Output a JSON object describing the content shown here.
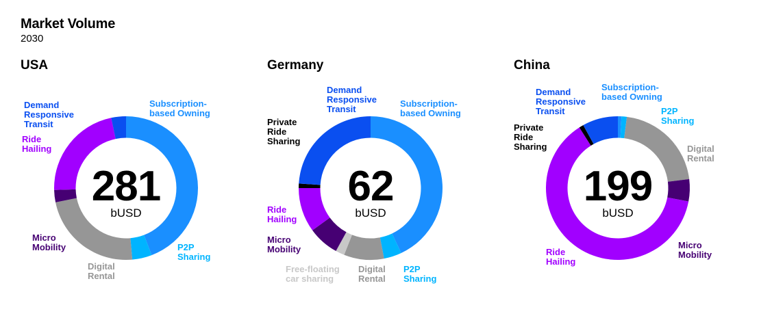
{
  "header": {
    "title": "Market Volume",
    "subtitle": "2030"
  },
  "colors": {
    "demand_responsive_transit": "#0a4ff0",
    "subscription_based_owning": "#1a8fff",
    "p2p_sharing": "#00b4ff",
    "digital_rental": "#969696",
    "micro_mobility": "#460073",
    "ride_hailing": "#a100ff",
    "private_ride_sharing": "#000000",
    "free_floating_car_sharing": "#c8c8c8"
  },
  "chart_data": [
    {
      "type": "pie",
      "variant": "donut",
      "title": "USA",
      "total": "281",
      "unit": "bUSD",
      "segments": [
        {
          "label": "Subscription-based Owning",
          "key": "subscription_based_owning",
          "value": 40
        },
        {
          "label": "P2P Sharing",
          "key": "p2p_sharing",
          "value": 4
        },
        {
          "label": "Digital Rental",
          "key": "digital_rental",
          "value": 21
        },
        {
          "label": "Micro Mobility",
          "key": "micro_mobility",
          "value": 2.5
        },
        {
          "label": "Ride Hailing",
          "key": "ride_hailing",
          "value": 20
        },
        {
          "label": "Demand Responsive Transit",
          "key": "demand_responsive_transit",
          "value": 3
        }
      ],
      "labels": {
        "demand_responsive_transit": "Demand\nResponsive\nTransit",
        "subscription_based_owning": "Subscription-\nbased Owning",
        "ride_hailing": "Ride\nHailing",
        "micro_mobility": "Micro\nMobility",
        "digital_rental": "Digital\nRental",
        "p2p_sharing": "P2P\nSharing"
      }
    },
    {
      "type": "pie",
      "variant": "donut",
      "title": "Germany",
      "total": "62",
      "unit": "bUSD",
      "segments": [
        {
          "label": "Subscription-based Owning",
          "key": "subscription_based_owning",
          "value": 43
        },
        {
          "label": "P2P Sharing",
          "key": "p2p_sharing",
          "value": 4
        },
        {
          "label": "Digital Rental",
          "key": "digital_rental",
          "value": 9
        },
        {
          "label": "Free-floating car sharing",
          "key": "free_floating_car_sharing",
          "value": 2
        },
        {
          "label": "Micro Mobility",
          "key": "micro_mobility",
          "value": 7
        },
        {
          "label": "Ride Hailing",
          "key": "ride_hailing",
          "value": 10
        },
        {
          "label": "Private Ride Sharing",
          "key": "private_ride_sharing",
          "value": 1
        },
        {
          "label": "Demand Responsive Transit",
          "key": "demand_responsive_transit",
          "value": 24
        }
      ],
      "labels": {
        "private_ride_sharing": "Private\nRide\nSharing",
        "demand_responsive_transit": "Demand\nResponsive\nTransit",
        "subscription_based_owning": "Subscription-\nbased Owning",
        "ride_hailing": "Ride\nHailing",
        "micro_mobility": "Micro\nMobility",
        "free_floating_car_sharing": "Free-floating\ncar sharing",
        "digital_rental": "Digital\nRental",
        "p2p_sharing": "P2P\nSharing"
      }
    },
    {
      "type": "pie",
      "variant": "donut",
      "title": "China",
      "total": "199",
      "unit": "bUSD",
      "segments": [
        {
          "label": "Subscription-based Owning",
          "key": "subscription_based_owning",
          "value": 0.8
        },
        {
          "label": "P2P Sharing",
          "key": "p2p_sharing",
          "value": 1.2
        },
        {
          "label": "Digital Rental",
          "key": "digital_rental",
          "value": 21
        },
        {
          "label": "Micro Mobility",
          "key": "micro_mobility",
          "value": 5
        },
        {
          "label": "Ride Hailing",
          "key": "ride_hailing",
          "value": 63
        },
        {
          "label": "Private Ride Sharing",
          "key": "private_ride_sharing",
          "value": 1
        },
        {
          "label": "Demand Responsive Transit",
          "key": "demand_responsive_transit",
          "value": 8
        }
      ],
      "labels": {
        "demand_responsive_transit": "Demand\nResponsive\nTransit",
        "subscription_based_owning": "Subscription-\nbased Owning",
        "p2p_sharing": "P2P\nSharing",
        "private_ride_sharing": "Private\nRide\nSharing",
        "digital_rental": "Digital\nRental",
        "ride_hailing": "Ride\nHailing",
        "micro_mobility": "Micro\nMobility"
      }
    }
  ]
}
